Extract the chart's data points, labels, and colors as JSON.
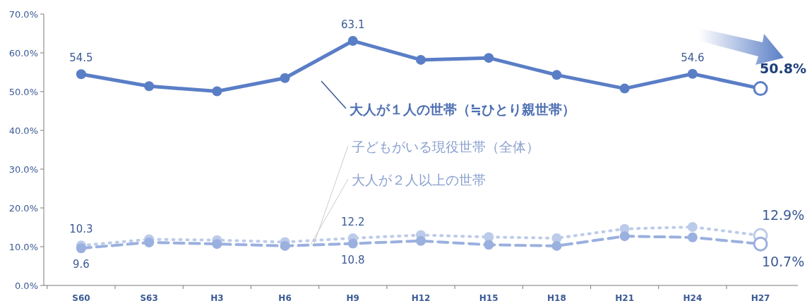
{
  "chart_data": {
    "type": "line",
    "categories": [
      "S60",
      "S63",
      "H3",
      "H6",
      "H9",
      "H12",
      "H15",
      "H18",
      "H21",
      "H24",
      "H27"
    ],
    "ylim": [
      0,
      70
    ],
    "yticks": [
      {
        "value": 0,
        "label": "0.0%"
      },
      {
        "value": 10,
        "label": "10.0%"
      },
      {
        "value": 20,
        "label": "20.0%"
      },
      {
        "value": 30,
        "label": "30.0%"
      },
      {
        "value": 40,
        "label": "40.0%"
      },
      {
        "value": 50,
        "label": "50.0%"
      },
      {
        "value": 60,
        "label": "60.0%"
      },
      {
        "value": 70,
        "label": "70.0%"
      }
    ],
    "grid": false,
    "marker": "circle",
    "series": [
      {
        "name": "大人が１人の世帯（≒ひとり親世帯）",
        "color": "#5a7ec6",
        "line_style": "solid",
        "values": [
          54.5,
          51.4,
          50.1,
          53.5,
          63.1,
          58.2,
          58.7,
          54.3,
          50.8,
          54.6,
          50.8
        ],
        "value_labels": [
          "54.5",
          null,
          null,
          null,
          "63.1",
          null,
          null,
          null,
          null,
          "54.6",
          "50.8%"
        ]
      },
      {
        "name": "子どもがいる現役世帯（全体）",
        "color": "#bccbea",
        "line_style": "dotted",
        "values": [
          10.3,
          11.9,
          11.7,
          11.2,
          12.2,
          13.0,
          12.5,
          12.2,
          14.6,
          15.1,
          12.9
        ],
        "value_labels": [
          "10.3",
          null,
          null,
          null,
          "12.2",
          null,
          null,
          null,
          null,
          null,
          "12.9%"
        ]
      },
      {
        "name": "大人が２人以上の世帯",
        "color": "#9ab0df",
        "line_style": "dashed",
        "values": [
          9.6,
          11.1,
          10.7,
          10.2,
          10.8,
          11.5,
          10.5,
          10.2,
          12.7,
          12.4,
          10.7
        ],
        "value_labels": [
          "9.6",
          null,
          null,
          null,
          "10.8",
          null,
          null,
          null,
          null,
          null,
          "10.7%"
        ]
      }
    ]
  }
}
